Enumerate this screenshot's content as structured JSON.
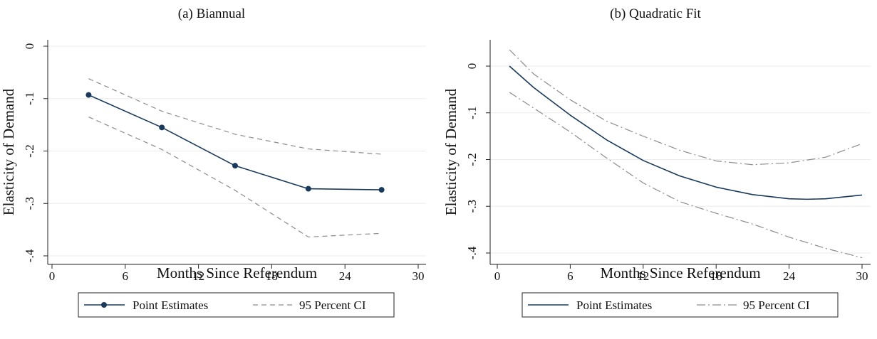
{
  "chart_data": [
    {
      "type": "line",
      "title": "(a) Biannual",
      "xlabel": "Months Since Referendum",
      "ylabel": "Elasticity of Demand",
      "xlim": [
        0,
        30
      ],
      "ylim": [
        -0.4,
        0
      ],
      "xticks": [
        "0",
        "6",
        "12",
        "18",
        "24",
        "30"
      ],
      "yticks": [
        "0",
        "-.1",
        "-.2",
        "-.3",
        "-.4"
      ],
      "grid": true,
      "legend_position": "bottom",
      "series": [
        {
          "name": "Point Estimates",
          "style": "solid-markers",
          "color": "#1a3a5c",
          "x": [
            3,
            9,
            15,
            21,
            27
          ],
          "y": [
            -0.093,
            -0.155,
            -0.228,
            -0.272,
            -0.274
          ]
        },
        {
          "name": "95 Percent CI",
          "style": "dashed",
          "color": "#8c8c8c",
          "x": [
            3,
            9,
            15,
            21,
            27
          ],
          "y": [
            -0.062,
            -0.124,
            -0.168,
            -0.196,
            -0.206
          ]
        },
        {
          "name": "",
          "style": "dashed",
          "color": "#8c8c8c",
          "x": [
            3,
            9,
            15,
            21,
            27
          ],
          "y": [
            -0.135,
            -0.197,
            -0.275,
            -0.364,
            -0.357
          ]
        }
      ]
    },
    {
      "type": "line",
      "title": "(b) Quadratic Fit",
      "xlabel": "Months Since Referendum",
      "ylabel": "Elasticity of Demand",
      "xlim": [
        0,
        30
      ],
      "ylim": [
        -0.4,
        0
      ],
      "xticks": [
        "0",
        "6",
        "12",
        "18",
        "24",
        "30"
      ],
      "yticks": [
        "0",
        "-.1",
        "-.2",
        "-.3",
        "-.4"
      ],
      "grid": true,
      "legend_position": "bottom",
      "series": [
        {
          "name": "Point Estimates",
          "style": "solid",
          "color": "#1a3a5c",
          "x": [
            1,
            3,
            6,
            9,
            12,
            15,
            18,
            21,
            24,
            25.5,
            27,
            30
          ],
          "y": [
            0.0,
            -0.046,
            -0.105,
            -0.158,
            -0.202,
            -0.235,
            -0.259,
            -0.275,
            -0.284,
            -0.285,
            -0.284,
            -0.276
          ]
        },
        {
          "name": "95 Percent CI",
          "style": "dashdot",
          "color": "#8c8c8c",
          "x": [
            1,
            3,
            6,
            9,
            12,
            15,
            18,
            21,
            24,
            27,
            30
          ],
          "y": [
            0.035,
            -0.017,
            -0.072,
            -0.118,
            -0.15,
            -0.18,
            -0.203,
            -0.211,
            -0.207,
            -0.195,
            -0.166
          ]
        },
        {
          "name": "",
          "style": "dashdot",
          "color": "#8c8c8c",
          "x": [
            1,
            3,
            6,
            9,
            12,
            15,
            18,
            21,
            24,
            27,
            30
          ],
          "y": [
            -0.056,
            -0.09,
            -0.141,
            -0.197,
            -0.25,
            -0.29,
            -0.315,
            -0.338,
            -0.366,
            -0.39,
            -0.41
          ]
        }
      ]
    }
  ]
}
